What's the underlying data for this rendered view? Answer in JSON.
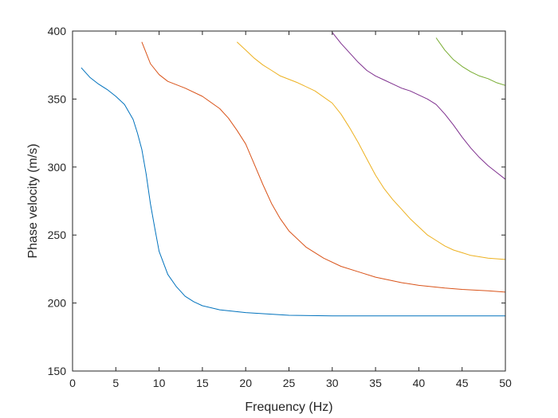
{
  "chart_data": {
    "type": "line",
    "title": "",
    "xlabel": "Frequency (Hz)",
    "ylabel": "Phase velocity (m/s)",
    "xlim": [
      0,
      50
    ],
    "ylim": [
      150,
      400
    ],
    "xticks": [
      "0",
      "5",
      "10",
      "15",
      "20",
      "25",
      "30",
      "35",
      "40",
      "45",
      "50"
    ],
    "yticks": [
      "150",
      "200",
      "250",
      "300",
      "350",
      "400"
    ],
    "grid": false,
    "legend": "none",
    "series": [
      {
        "color": "#0072BD",
        "x": [
          1,
          2,
          3,
          4,
          5,
          6,
          7,
          7.5,
          8,
          8.5,
          9,
          9.5,
          10,
          11,
          12,
          13,
          14,
          15,
          17,
          20,
          25,
          30,
          35,
          40,
          45,
          50
        ],
        "y": [
          373,
          366,
          361,
          357,
          352,
          346,
          335,
          325,
          313,
          295,
          273,
          255,
          238,
          221,
          212,
          205,
          201,
          198,
          195,
          193,
          191,
          190.5,
          190.5,
          190.5,
          190.5,
          190.5
        ]
      },
      {
        "color": "#D95319",
        "x": [
          8,
          8.5,
          9,
          10,
          11,
          13,
          15,
          17,
          18,
          19,
          20,
          21,
          22,
          23,
          24,
          25,
          27,
          29,
          31,
          33,
          35,
          38,
          40,
          43,
          45,
          48,
          50
        ],
        "y": [
          392,
          384,
          376,
          368,
          363,
          358,
          352,
          343,
          336,
          327,
          317,
          302,
          287,
          273,
          262,
          253,
          241,
          233,
          227,
          223,
          219,
          215,
          213,
          211,
          210,
          209,
          208
        ]
      },
      {
        "color": "#EDB120",
        "x": [
          19,
          20,
          21,
          22,
          23,
          24,
          26,
          28,
          30,
          31,
          32,
          33,
          34,
          35,
          36,
          37,
          38,
          39,
          40,
          41,
          42,
          43,
          44,
          45,
          46,
          48,
          50
        ],
        "y": [
          392,
          386,
          380,
          375,
          371,
          367,
          362,
          356,
          347,
          339,
          329,
          318,
          306,
          294,
          284,
          276,
          269,
          262,
          256,
          250,
          246,
          242,
          239,
          237,
          235,
          233,
          232
        ]
      },
      {
        "color": "#7E2F8E",
        "x": [
          30,
          31,
          32,
          33,
          34,
          35,
          36,
          37,
          38,
          39,
          40,
          41,
          42,
          43,
          44,
          45,
          46,
          47,
          48,
          49,
          50
        ],
        "y": [
          399,
          391,
          384,
          377,
          371,
          367,
          364,
          361,
          358,
          356,
          353,
          350,
          346,
          339,
          331,
          322,
          314,
          307,
          301,
          296,
          291
        ]
      },
      {
        "color": "#77AC30",
        "x": [
          42,
          43,
          44,
          45,
          46,
          47,
          48,
          49,
          50
        ],
        "y": [
          395,
          386,
          379,
          374,
          370,
          367,
          365,
          362,
          360
        ]
      }
    ]
  }
}
